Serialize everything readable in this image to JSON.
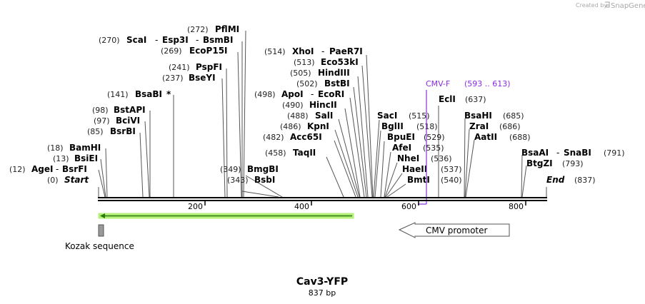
{
  "credit": {
    "prefix": "Created by",
    "brand": "SnapGene"
  },
  "construct": {
    "name": "Cav3-YFP",
    "length_label": "837 bp"
  },
  "sites": [
    {
      "enzyme": "AgeI",
      "partner": "BsrFI",
      "pos_label": "(12)"
    },
    {
      "enzyme": "BsiEI",
      "pos_label": "(13)"
    },
    {
      "enzyme": "BamHI",
      "pos_label": "(18)"
    },
    {
      "enzyme": "BsrBI",
      "pos_label": "(85)"
    },
    {
      "enzyme": "BciVI",
      "pos_label": "(97)"
    },
    {
      "enzyme": "BstAPI",
      "pos_label": "(98)"
    },
    {
      "enzyme": "BsaBI",
      "star": "*",
      "pos_label": "(141)"
    },
    {
      "enzyme": "BseYI",
      "pos_label": "(237)"
    },
    {
      "enzyme": "PspFI",
      "pos_label": "(241)"
    },
    {
      "enzyme": "EcoP15I",
      "pos_label": "(269)"
    },
    {
      "enzyme": "ScaI",
      "partner": "Esp3I",
      "partner2": "BsmBI",
      "pos_label": "(270)"
    },
    {
      "enzyme": "PflMI",
      "pos_label": "(272)"
    },
    {
      "enzyme": "BsbI",
      "pos_label": "(343)"
    },
    {
      "enzyme": "BmgBI",
      "pos_label": "(349)"
    },
    {
      "enzyme": "TaqII",
      "pos_label": "(458)"
    },
    {
      "enzyme": "Acc65I",
      "pos_label": "(482)"
    },
    {
      "enzyme": "KpnI",
      "pos_label": "(486)"
    },
    {
      "enzyme": "SalI",
      "pos_label": "(488)"
    },
    {
      "enzyme": "HincII",
      "pos_label": "(490)"
    },
    {
      "enzyme": "ApoI",
      "partner": "EcoRI",
      "pos_label": "(498)"
    },
    {
      "enzyme": "BstBI",
      "pos_label": "(502)"
    },
    {
      "enzyme": "HindIII",
      "pos_label": "(505)"
    },
    {
      "enzyme": "Eco53kI",
      "pos_label": "(513)"
    },
    {
      "enzyme": "XhoI",
      "partner": "PaeR7I",
      "pos_label": "(514)"
    },
    {
      "enzyme": "SacI",
      "pos_label": "(515)"
    },
    {
      "enzyme": "BglII",
      "pos_label": "(518)"
    },
    {
      "enzyme": "BpuEI",
      "pos_label": "(529)"
    },
    {
      "enzyme": "AfeI",
      "pos_label": "(535)"
    },
    {
      "enzyme": "NheI",
      "pos_label": "(536)"
    },
    {
      "enzyme": "HaeII",
      "pos_label": "(537)"
    },
    {
      "enzyme": "BmtI",
      "pos_label": "(540)"
    },
    {
      "enzyme": "EclI",
      "pos_label": "(637)"
    },
    {
      "enzyme": "BsaHI",
      "pos_label": "(685)"
    },
    {
      "enzyme": "ZraI",
      "pos_label": "(686)"
    },
    {
      "enzyme": "AatII",
      "pos_label": "(688)"
    },
    {
      "enzyme": "BsaAI",
      "partner": "SnaBI",
      "pos_label": "(791)"
    },
    {
      "enzyme": "BtgZI",
      "pos_label": "(793)"
    }
  ],
  "ends": {
    "start": {
      "label": "Start",
      "pos_label": "(0)"
    },
    "end": {
      "label": "End",
      "pos_label": "(837)"
    }
  },
  "ruler": {
    "ticks": [
      "200",
      "400",
      "600",
      "800"
    ]
  },
  "primer": {
    "name": "CMV-F",
    "range": "(593 .. 613)",
    "color": "#8a2be2"
  },
  "features": {
    "kozak": {
      "label": "Kozak sequence",
      "color": "#999999"
    },
    "cmv": {
      "label": "CMV promoter"
    },
    "yfp_arrow": {
      "color": "#b5f07a",
      "stroke": "#2a7a0a"
    }
  }
}
